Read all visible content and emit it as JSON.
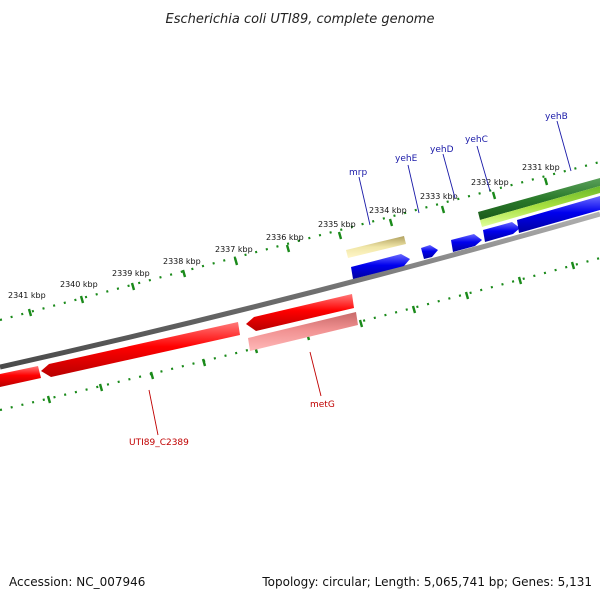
{
  "title": "Escherichia coli UTI89, complete genome",
  "footer": {
    "accession": "Accession: NC_007946",
    "summary": "Topology: circular; Length: 5,065,741 bp; Genes: 5,131"
  },
  "ticks": [
    "2331 kbp",
    "2332 kbp",
    "2333 kbp",
    "2334 kbp",
    "2335 kbp",
    "2336 kbp",
    "2337 kbp",
    "2338 kbp",
    "2339 kbp",
    "2340 kbp",
    "2341 kbp"
  ],
  "genes": {
    "yehB": "yehB",
    "yehC": "yehC",
    "yehD": "yehD",
    "yehE": "yehE",
    "mrp": "mrp",
    "metG": "metG",
    "uti89_c2389": "UTI89_C2389"
  },
  "colors": {
    "backbone": "#808080",
    "tick": "#1a8a1a",
    "forward_cds": "#0000ee",
    "reverse_cds": "#ee0000",
    "reverse_feature": "#f08a8a",
    "misc_feature": "#e8dc90",
    "dark_green_feature": "#2a7a2a",
    "light_green_feature": "#a8e040"
  }
}
